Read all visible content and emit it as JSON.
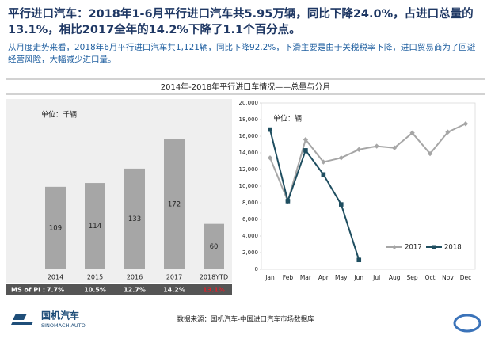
{
  "headline": "平行进口汽车：2018年1-6月平行进口汽车共5.95万辆，同比下降24.0%，占进口总量的13.1%，相比2017全年的14.2%下降了1.1个百分点。",
  "summary": "从月度走势来看，2018年6月平行进口汽车共1,121辆，同比下降92.2%，下滑主要是由于关税税率下降，进口贸易商为了回避经营风险，大幅减少进口量。",
  "panel_title": "2014年-2018年平行进口车情况——总量与分月",
  "source": "数据来源：国机汽车-中国进口汽车市场数据库",
  "logo": {
    "name": "国机汽车",
    "name_en": "SINOMACH AUTO"
  },
  "chart_data": [
    {
      "type": "bar",
      "unit_label": "单位：千辆",
      "categories": [
        "2014",
        "2015",
        "2016",
        "2017",
        "2018YTD"
      ],
      "values": [
        109,
        114,
        133,
        172,
        60
      ],
      "color": "#a6a6a6",
      "ylim": [
        0,
        180
      ],
      "share": {
        "name": "MS of PI :",
        "values": [
          7.7,
          10.5,
          12.7,
          14.2,
          13.1
        ],
        "value_labels": [
          "7.7%",
          "10.5%",
          "12.7%",
          "14.2%",
          "13.1%"
        ],
        "colors": [
          "#ffffff",
          "#ffffff",
          "#ffffff",
          "#ffffff",
          "#e0202a"
        ]
      }
    },
    {
      "type": "line",
      "unit_label": "单位：辆",
      "categories": [
        "Jan",
        "Feb",
        "Mar",
        "Apr",
        "May",
        "Jun",
        "Jul",
        "Aug",
        "Sep",
        "Oct",
        "Nov",
        "Dec"
      ],
      "series": [
        {
          "name": "2017",
          "color": "#a6a6a6",
          "marker": "diamond",
          "values": [
            13400,
            8200,
            15600,
            12900,
            13400,
            14400,
            14800,
            14600,
            16400,
            13900,
            16500,
            17500
          ]
        },
        {
          "name": "2018",
          "color": "#1f4e60",
          "marker": "square",
          "values": [
            16800,
            8200,
            14300,
            11400,
            7800,
            1121,
            null,
            null,
            null,
            null,
            null,
            null
          ]
        }
      ],
      "ylim": [
        0,
        20000
      ],
      "yticks": [
        0,
        {
          "value": 2000,
          "label": "2,000"
        },
        {
          "value": 4000,
          "label": "4,000"
        },
        {
          "value": 6000,
          "label": "6,000"
        },
        {
          "value": 8000,
          "label": "8,000"
        },
        {
          "value": 10000,
          "label": "10,000"
        },
        {
          "value": 12000,
          "label": "12,000"
        },
        {
          "value": 14000,
          "label": "14,000"
        },
        {
          "value": 16000,
          "label": "16,000"
        },
        {
          "value": 18000,
          "label": "18,000"
        },
        {
          "value": 20000,
          "label": "20,000"
        }
      ],
      "legend": "lower right"
    }
  ]
}
